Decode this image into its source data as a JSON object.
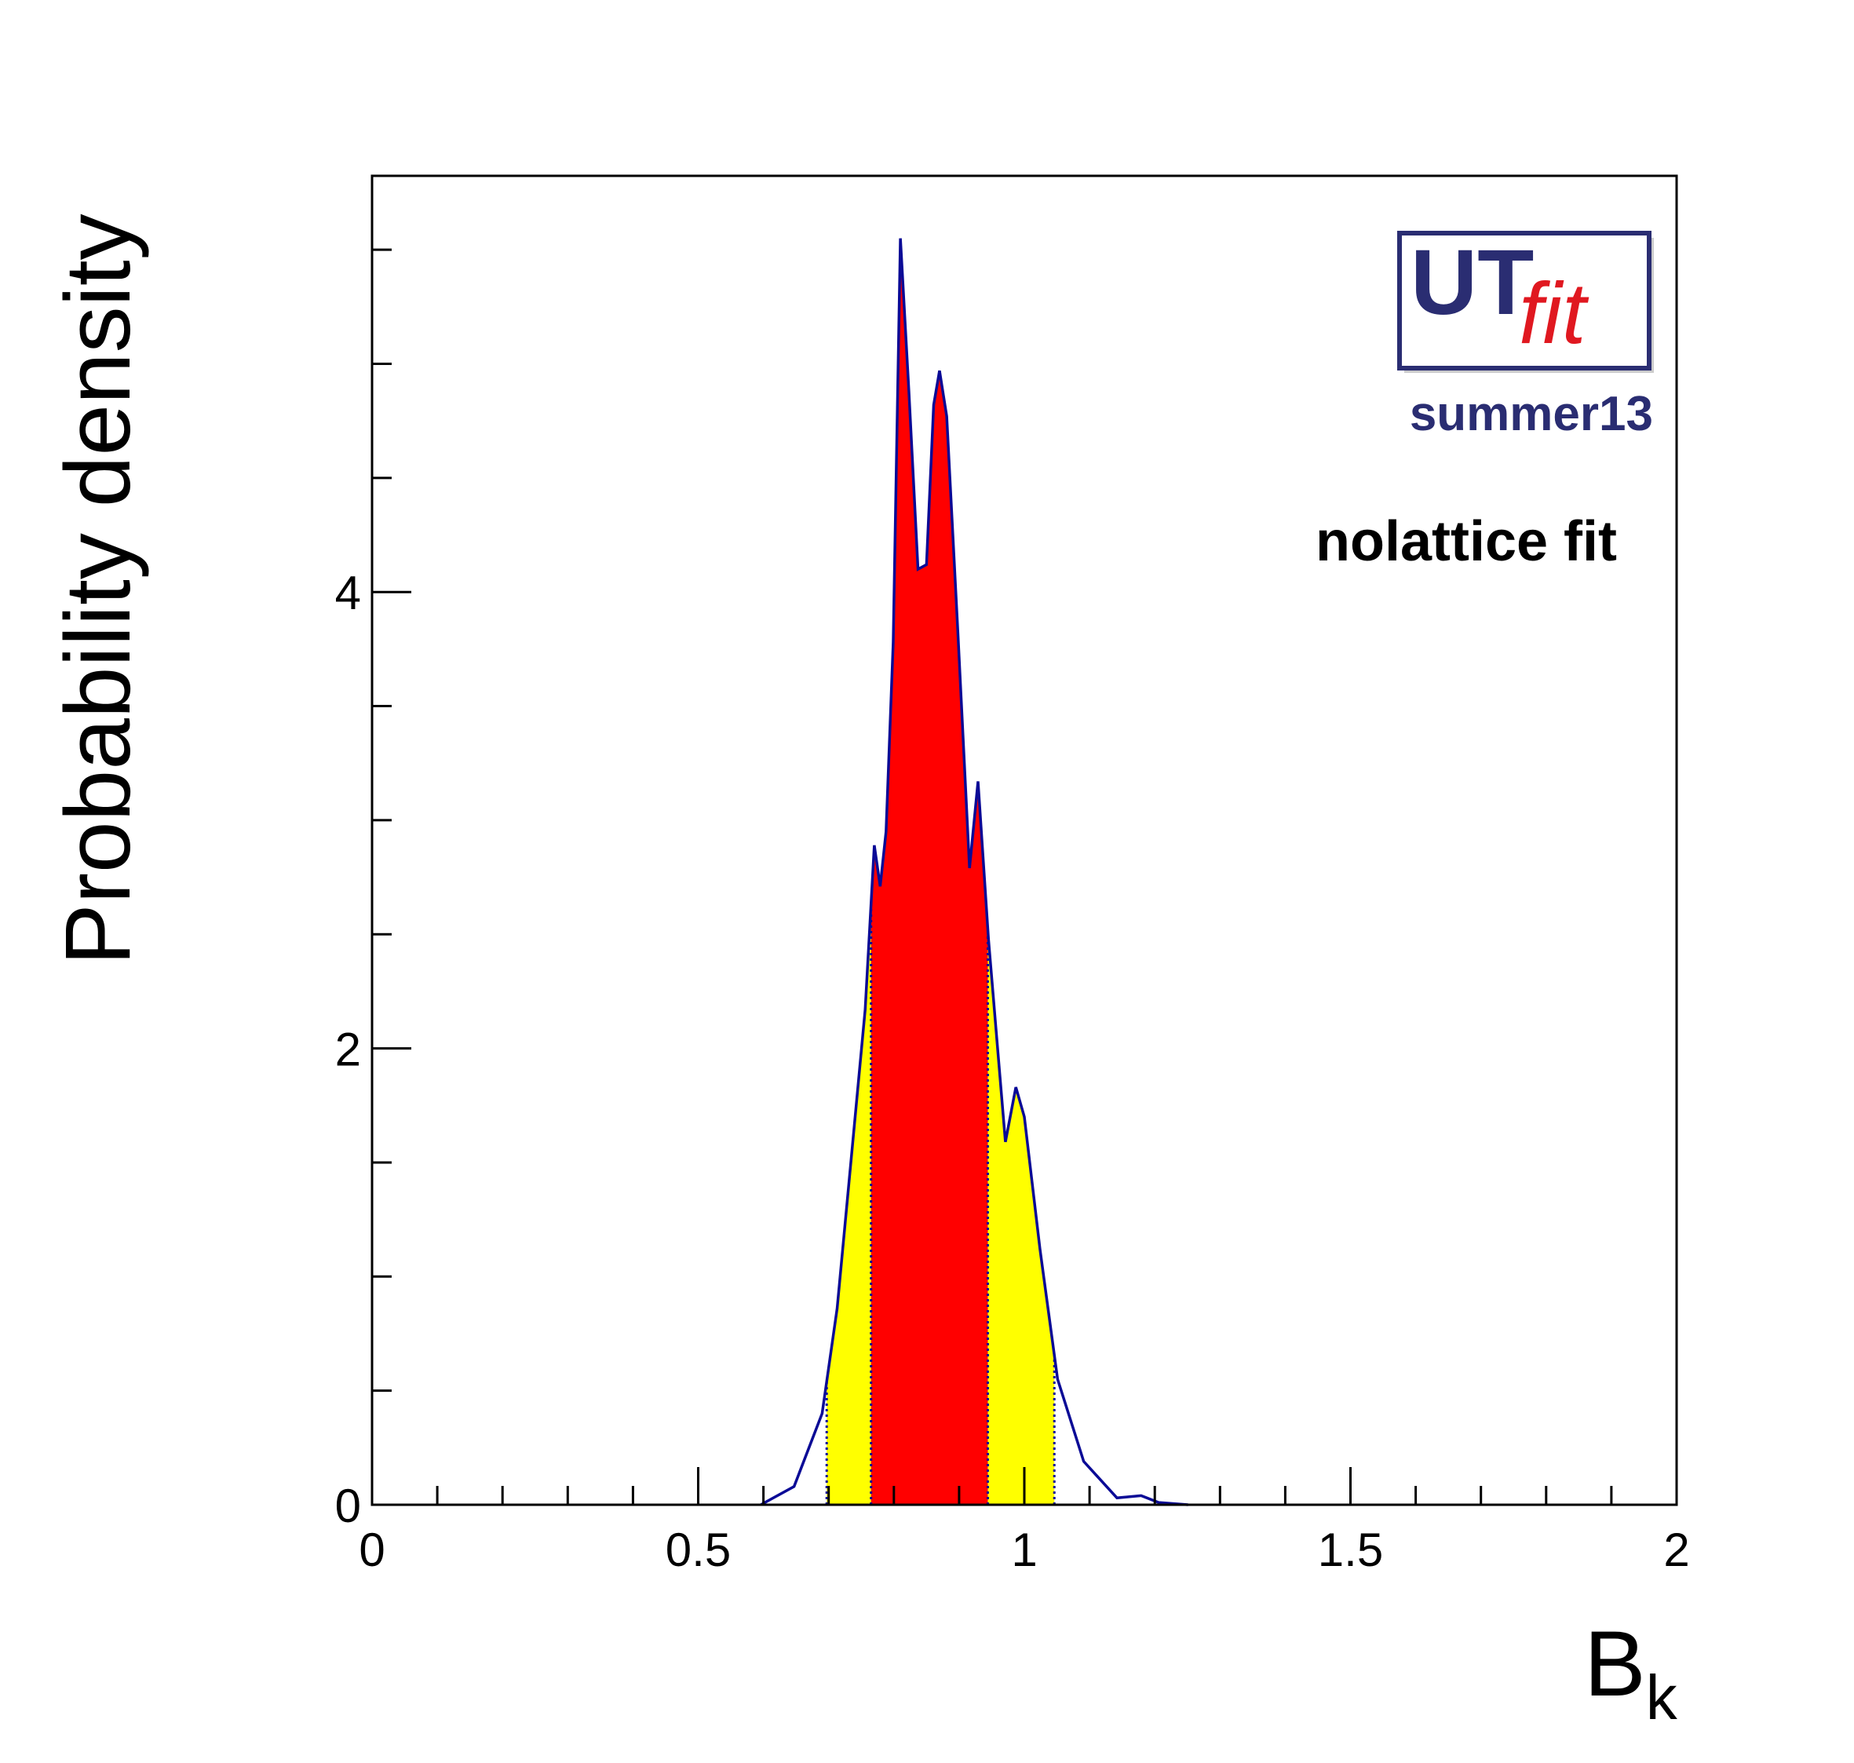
{
  "chart_data": {
    "type": "area",
    "xlabel": "B",
    "xlabel_subscript": "k",
    "ylabel": "Probability density",
    "xlim": [
      0,
      2
    ],
    "ylim": [
      0,
      5.82
    ],
    "x_ticks": [
      "0",
      "0.5",
      "1",
      "1.5",
      "2"
    ],
    "y_ticks": [
      "0",
      "2",
      "4"
    ],
    "grid": false,
    "annotations": {
      "logo_main": "UT",
      "logo_sub": "fit",
      "logo_tag": "summer13",
      "fit_label": "nolattice fit"
    },
    "colors": {
      "curve": "#0a0a96",
      "band_68": "#ff0000",
      "band_95": "#ffff00",
      "logo_blue": "#2a2d72",
      "logo_red": "#e01820"
    },
    "intervals": {
      "band_95": [
        0.697,
        1.046
      ],
      "band_68": [
        0.765,
        0.944
      ]
    },
    "series": [
      {
        "x": [
          0.596,
          0.647,
          0.69,
          0.713,
          0.737,
          0.756,
          0.77,
          0.779,
          0.788,
          0.799,
          0.81,
          0.823,
          0.837,
          0.85,
          0.861,
          0.87,
          0.881,
          0.898,
          0.916,
          0.929,
          0.945,
          0.971,
          0.987,
          1.0,
          1.024,
          1.051,
          1.091,
          1.142,
          1.179,
          1.206,
          1.251
        ],
        "y": [
          0,
          0.08,
          0.4,
          0.86,
          1.59,
          2.17,
          2.89,
          2.71,
          2.95,
          3.78,
          5.55,
          4.88,
          4.1,
          4.12,
          4.82,
          4.97,
          4.77,
          3.83,
          2.79,
          3.17,
          2.48,
          1.59,
          1.83,
          1.7,
          1.12,
          0.55,
          0.19,
          0.03,
          0.04,
          0.01,
          0
        ]
      }
    ]
  }
}
